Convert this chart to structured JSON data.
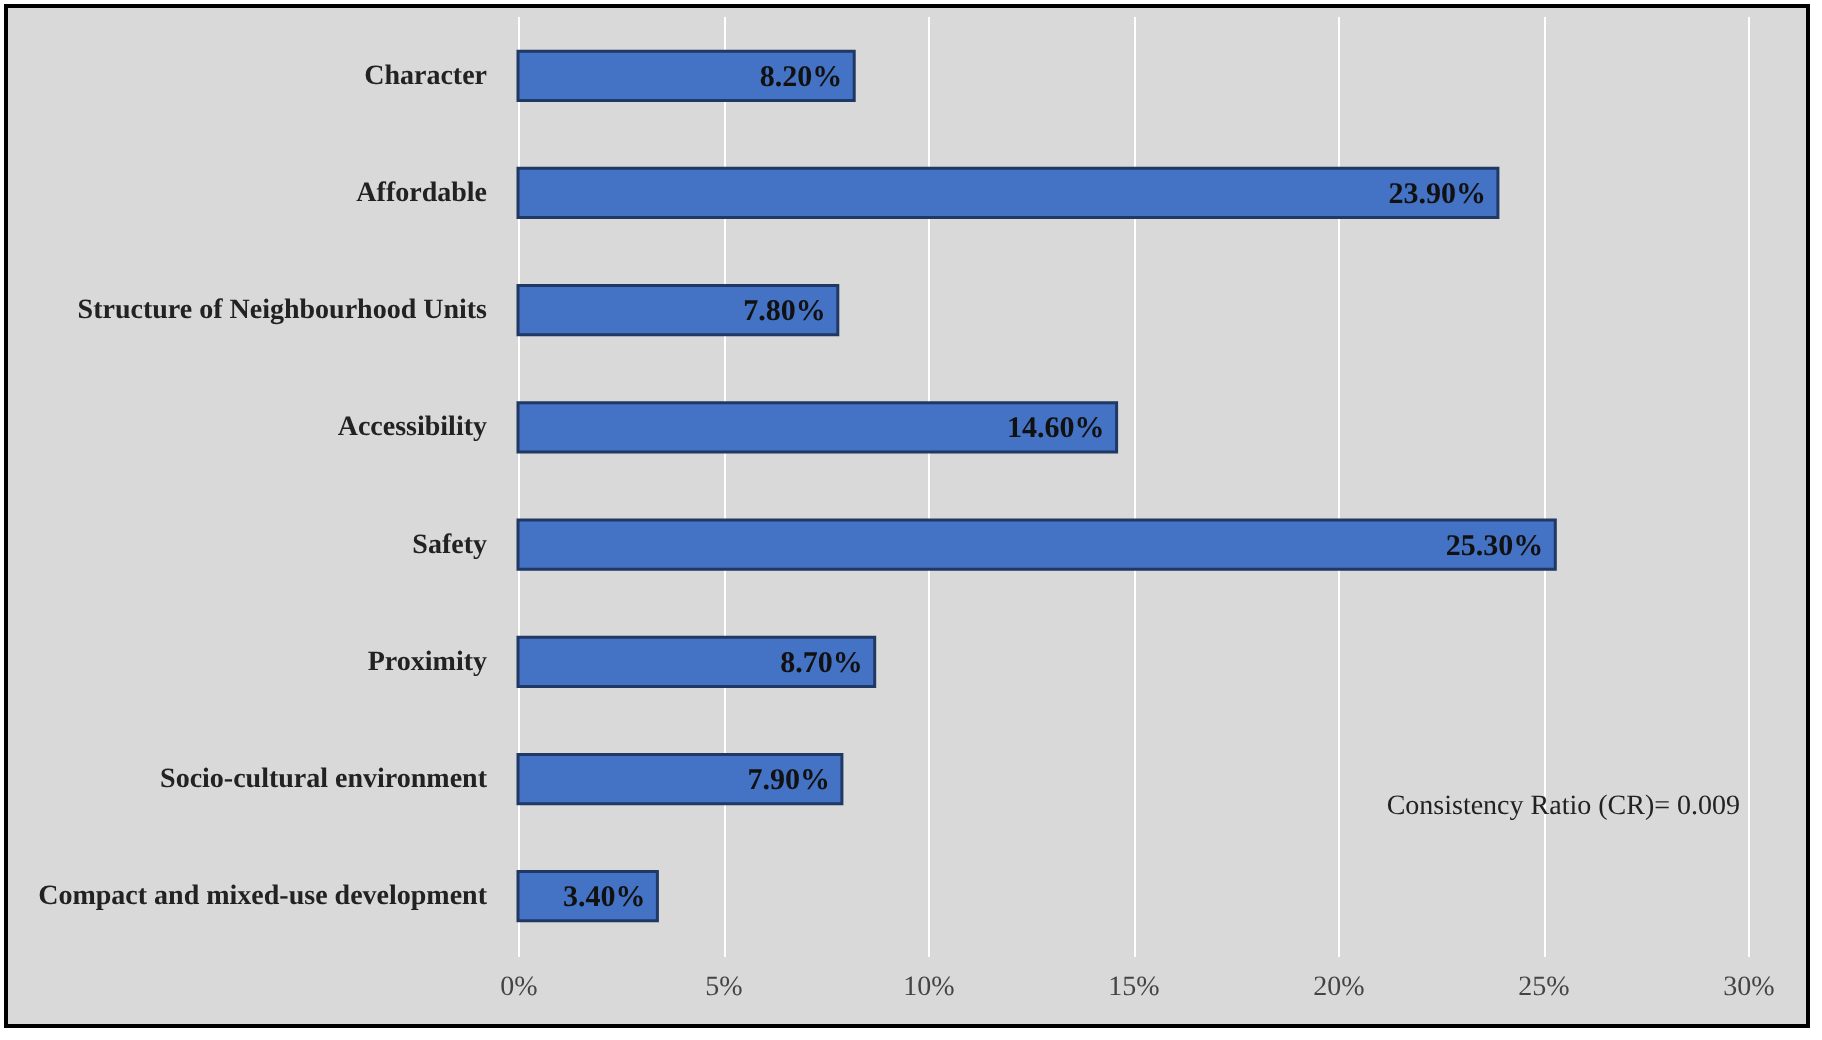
{
  "chart_data": {
    "type": "bar",
    "orientation": "horizontal",
    "categories": [
      "Character",
      "Affordable",
      "Structure of Neighbourhood Units",
      "Accessibility",
      "Safety",
      "Proximity",
      "Socio-cultural environment",
      "Compact and mixed-use development"
    ],
    "values": [
      8.2,
      23.9,
      7.8,
      14.6,
      25.3,
      8.7,
      7.9,
      3.4
    ],
    "value_labels": [
      "8.20%",
      "23.90%",
      "7.80%",
      "14.60%",
      "25.30%",
      "8.70%",
      "7.90%",
      "3.40%"
    ],
    "color": "#4472c4",
    "xlim": [
      0,
      30
    ],
    "xticks": [
      {
        "value": 0,
        "label": "0%"
      },
      {
        "value": 5,
        "label": "5%"
      },
      {
        "value": 10,
        "label": "10%"
      },
      {
        "value": 15,
        "label": "15%"
      },
      {
        "value": 20,
        "label": "20%"
      },
      {
        "value": 25,
        "label": "25%"
      },
      {
        "value": 30,
        "label": "30%"
      }
    ],
    "grid": "x",
    "annotations": [
      "Consistency Ratio (CR)= 0.009"
    ]
  }
}
